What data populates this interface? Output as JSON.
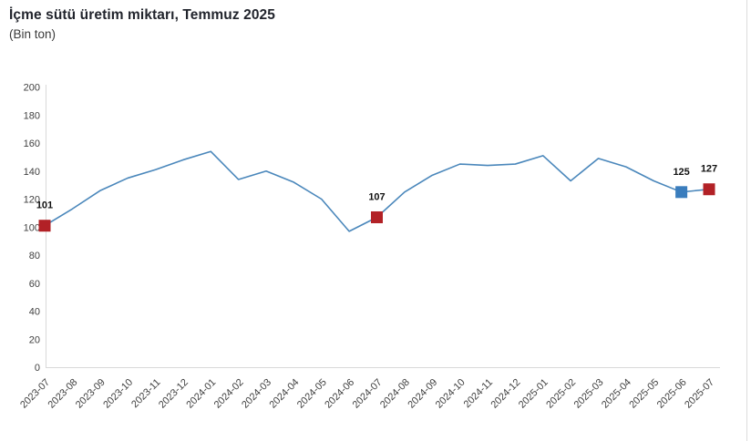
{
  "header": {
    "title": "İçme sütü üretim miktarı, Temmuz 2025",
    "subtitle": "(Bin ton)"
  },
  "colors": {
    "line": "#4a87bb",
    "marker_red": "#b22126",
    "marker_blue": "#3a7dbd",
    "axis_line": "#d9d9d9",
    "tick_text": "#404040",
    "point_label_text": "#111111"
  },
  "chart_data": {
    "type": "line",
    "title": "İçme sütü üretim miktarı, Temmuz 2025",
    "subtitle": "(Bin ton)",
    "xlabel": "",
    "ylabel": "Bin ton",
    "ylim": [
      0,
      200
    ],
    "ytick_step": 20,
    "grid": false,
    "legend_position": "none",
    "categories": [
      "2023-07",
      "2023-08",
      "2023-09",
      "2023-10",
      "2023-11",
      "2023-12",
      "2024-01",
      "2024-02",
      "2024-03",
      "2024-04",
      "2024-05",
      "2024-06",
      "2024-07",
      "2024-08",
      "2024-09",
      "2024-10",
      "2024-11",
      "2024-12",
      "2025-01",
      "2025-02",
      "2025-03",
      "2025-04",
      "2025-05",
      "2025-06",
      "2025-07"
    ],
    "values": [
      101,
      113,
      126,
      135,
      141,
      148,
      154,
      134,
      140,
      132,
      120,
      97,
      107,
      125,
      137,
      145,
      144,
      145,
      151,
      133,
      149,
      143,
      133,
      125,
      127
    ],
    "highlighted_points": [
      {
        "category": "2023-07",
        "value": 101,
        "label": "101",
        "color": "red"
      },
      {
        "category": "2024-07",
        "value": 107,
        "label": "107",
        "color": "red"
      },
      {
        "category": "2025-06",
        "value": 125,
        "label": "125",
        "color": "blue"
      },
      {
        "category": "2025-07",
        "value": 127,
        "label": "127",
        "color": "red"
      }
    ]
  }
}
